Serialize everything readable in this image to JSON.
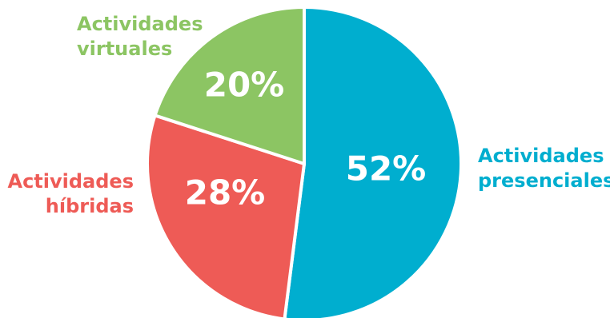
{
  "chart_data": {
    "type": "pie",
    "slices": [
      {
        "label_lines": [
          "Actividades",
          "presenciales"
        ],
        "percent_label": "52%",
        "value": 52,
        "color": "#00AECF"
      },
      {
        "label_lines": [
          "Actividades",
          "híbridas"
        ],
        "percent_label": "28%",
        "value": 28,
        "color": "#EE5B56"
      },
      {
        "label_lines": [
          "Actividades",
          "virtuales"
        ],
        "percent_label": "20%",
        "value": 20,
        "color": "#8CC563"
      }
    ],
    "start_angle": "12 o'clock",
    "direction": "clockwise"
  }
}
